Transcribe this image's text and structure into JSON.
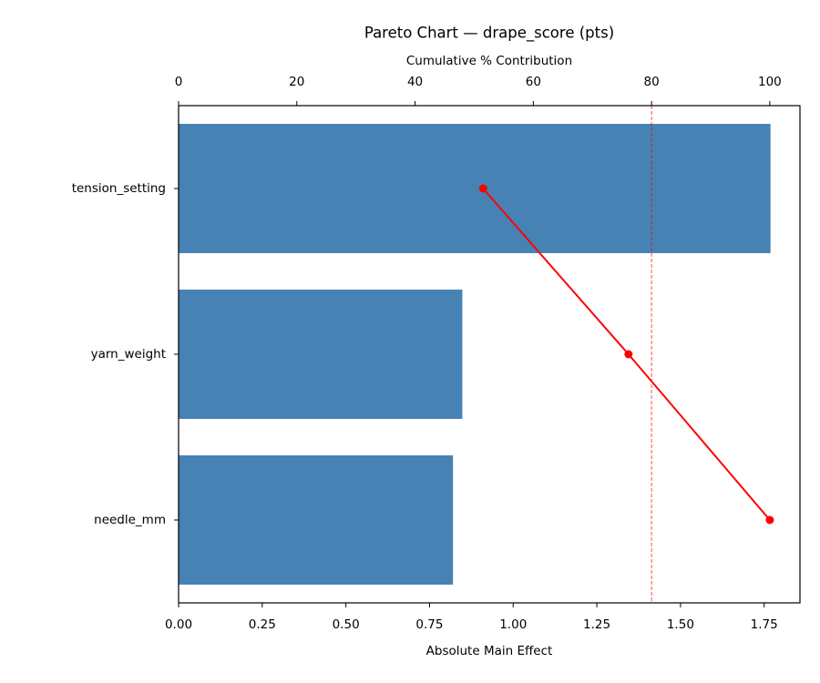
{
  "chart_data": {
    "type": "bar",
    "orientation": "horizontal",
    "title": "Pareto Chart — drape_score (pts)",
    "xlabel": "Absolute Main Effect",
    "x2label": "Cumulative % Contribution",
    "categories": [
      "tension_setting",
      "yarn_weight",
      "needle_mm"
    ],
    "series": [
      {
        "name": "Absolute Main Effect",
        "color": "#4682b4",
        "values": [
          1.769,
          0.848,
          0.82
        ]
      },
      {
        "name": "Cumulative %",
        "color": "#ff0000",
        "axis": "x2",
        "values": [
          51.5,
          76.1,
          100
        ]
      }
    ],
    "threshold": 80,
    "xlim": [
      0,
      1.857
    ],
    "xticks": [
      {
        "value": 0,
        "label": "0.00"
      },
      {
        "value": 0.25,
        "label": "0.25"
      },
      {
        "value": 0.5,
        "label": "0.50"
      },
      {
        "value": 0.75,
        "label": "0.75"
      },
      {
        "value": 1,
        "label": "1.00"
      },
      {
        "value": 1.25,
        "label": "1.25"
      },
      {
        "value": 1.5,
        "label": "1.50"
      },
      {
        "value": 1.75,
        "label": "1.75"
      }
    ],
    "x2lim": [
      0,
      105.1
    ],
    "x2ticks": [
      0,
      20,
      40,
      60,
      80,
      100
    ],
    "grid": false
  }
}
